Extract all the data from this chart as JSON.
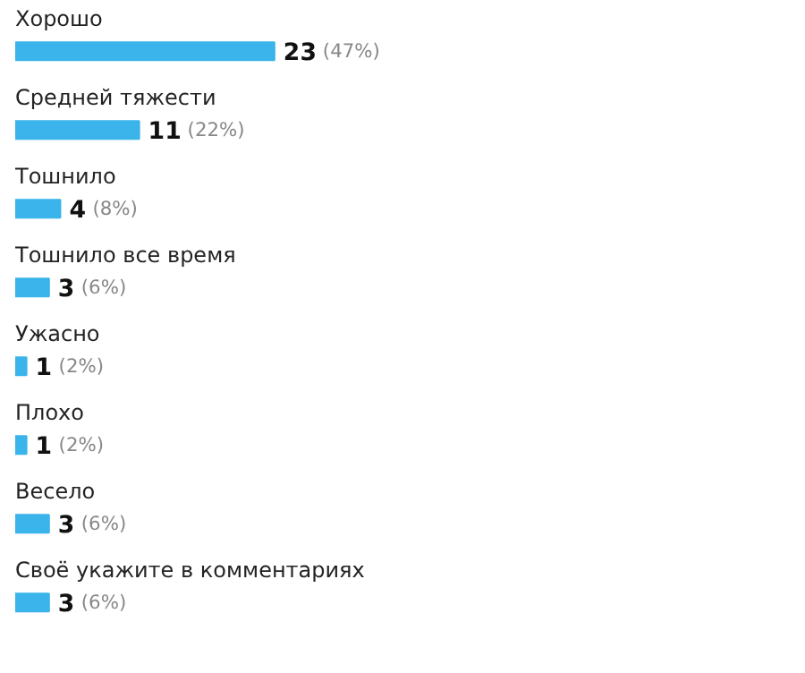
{
  "chart_data": {
    "type": "bar",
    "orientation": "horizontal",
    "categories": [
      "Хорошо",
      "Средней тяжести",
      "Тошнило",
      "Тошнило все время",
      "Ужасно",
      "Плохо",
      "Весело",
      "Своё укажите в комментариях"
    ],
    "values": [
      23,
      11,
      4,
      3,
      1,
      1,
      3,
      3
    ],
    "value_labels": [
      "23 (47%)",
      "11 (22%)",
      "4 (8%)",
      "3 (6%)",
      "1 (2%)",
      "1 (2%)",
      "3 (6%)",
      "3 (6%)"
    ],
    "color": "#3ab4ea"
  }
}
